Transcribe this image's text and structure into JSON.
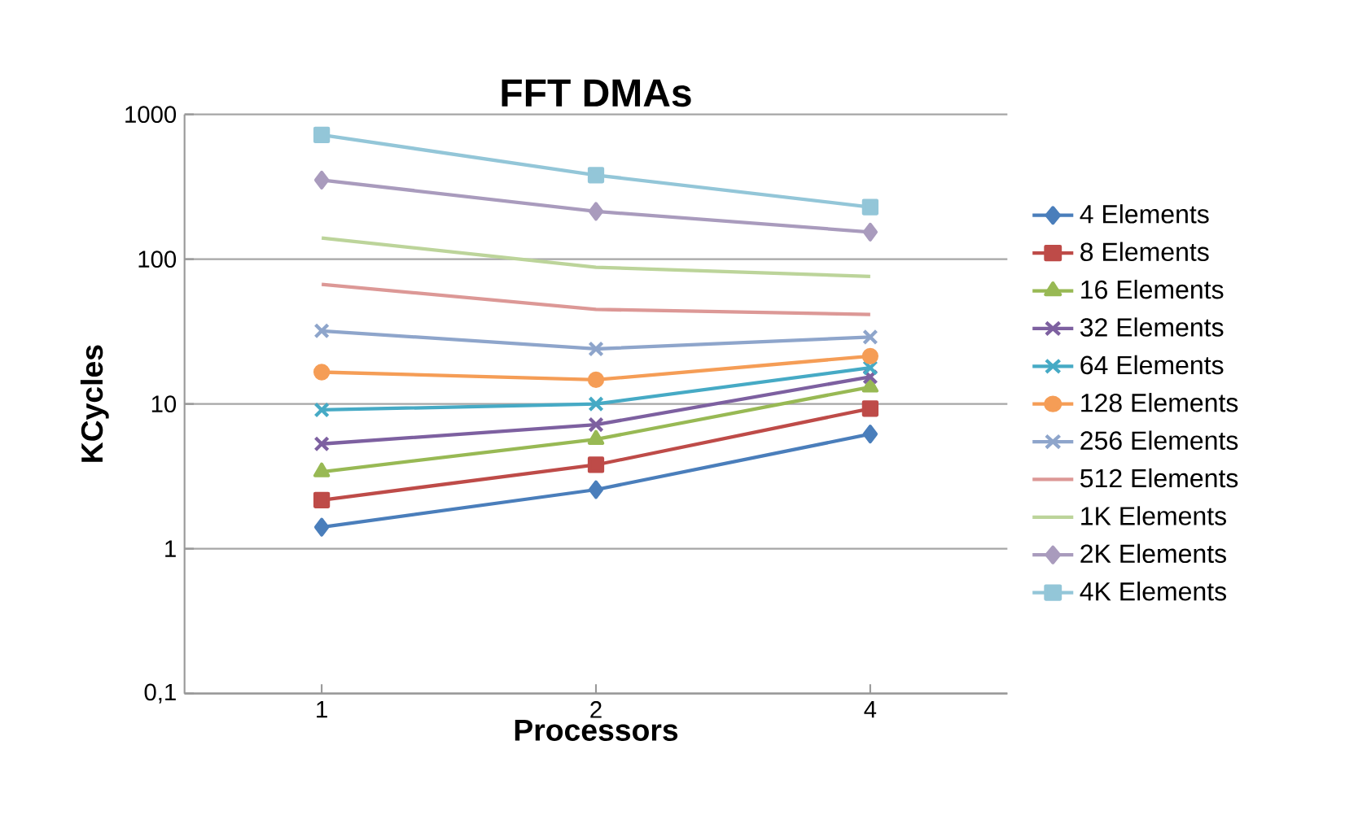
{
  "chart_data": {
    "type": "line",
    "title": "FFT DMAs",
    "xlabel": "Processors",
    "ylabel": "KCycles",
    "categories": [
      "1",
      "2",
      "4"
    ],
    "log": "y",
    "ylim": [
      0.1,
      1000
    ],
    "yticks": [
      {
        "value": 0.1,
        "label": "0,1"
      },
      1,
      10,
      100,
      1000
    ],
    "grid": "y",
    "legend": "right",
    "series": [
      {
        "name": "4 Elements",
        "color": "#4a7ebb",
        "marker": "diamond",
        "values": [
          1.41,
          2.56,
          6.2
        ]
      },
      {
        "name": "8 Elements",
        "color": "#be4b48",
        "marker": "square",
        "values": [
          2.17,
          3.8,
          9.3
        ]
      },
      {
        "name": "16 Elements",
        "color": "#98b954",
        "marker": "triangle",
        "values": [
          3.4,
          5.7,
          13.1
        ]
      },
      {
        "name": "32 Elements",
        "color": "#7d60a0",
        "marker": "cross",
        "values": [
          5.3,
          7.2,
          15.4
        ]
      },
      {
        "name": "64 Elements",
        "color": "#46aac5",
        "marker": "cross",
        "values": [
          9.1,
          10,
          17.8
        ]
      },
      {
        "name": "128 Elements",
        "color": "#f59d56",
        "marker": "circle",
        "values": [
          16.6,
          14.7,
          21.4
        ]
      },
      {
        "name": "256 Elements",
        "color": "#8ea5cb",
        "marker": "cross",
        "values": [
          32,
          24,
          29
        ]
      },
      {
        "name": "512 Elements",
        "color": "#dc9896",
        "marker": "none",
        "values": [
          67,
          45,
          41.5
        ]
      },
      {
        "name": "1K Elements",
        "color": "#bcd49a",
        "marker": "none",
        "values": [
          140,
          88,
          76
        ]
      },
      {
        "name": "2K Elements",
        "color": "#a99bbd",
        "marker": "diamond",
        "values": [
          352,
          214,
          154
        ]
      },
      {
        "name": "4K Elements",
        "color": "#93c6d8",
        "marker": "square",
        "values": [
          721,
          381,
          229
        ]
      }
    ]
  }
}
